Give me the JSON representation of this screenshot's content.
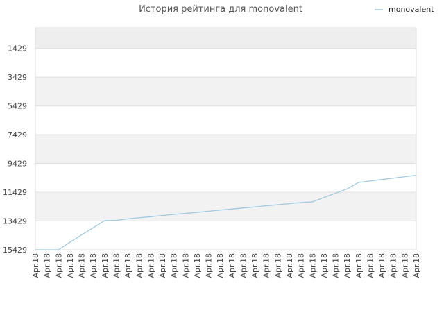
{
  "chart_data": {
    "type": "line",
    "title": "История рейтинга для monovalent",
    "xlabel": "",
    "ylabel": "",
    "y_inverted": true,
    "ylim": [
      15429,
      0
    ],
    "y_ticks": [
      1429,
      3429,
      5429,
      7429,
      9429,
      11429,
      13429,
      15429
    ],
    "x_tick_label": "Apr.18",
    "x_tick_count": 34,
    "grid": true,
    "legend_position": "top-right",
    "colors": {
      "line": "#9ecae1",
      "band": "#f2f2f2",
      "grid": "#e0e0e0",
      "axis": "#dddddd"
    },
    "series": [
      {
        "name": "monovalent",
        "x": [
          1,
          2,
          3,
          4,
          5,
          6,
          7,
          8,
          9,
          10,
          11,
          12,
          13,
          14,
          15,
          16,
          17,
          18,
          19,
          20,
          21,
          22,
          23,
          24,
          25,
          26,
          27,
          28,
          29,
          30,
          31,
          32,
          33,
          34
        ],
        "values": [
          15429,
          15429,
          15429,
          14900,
          14400,
          13900,
          13400,
          13380,
          13280,
          13200,
          13130,
          13050,
          12970,
          12900,
          12830,
          12750,
          12670,
          12600,
          12520,
          12450,
          12370,
          12300,
          12220,
          12150,
          12100,
          11800,
          11500,
          11200,
          10750,
          10650,
          10550,
          10450,
          10350,
          10250
        ]
      }
    ]
  }
}
